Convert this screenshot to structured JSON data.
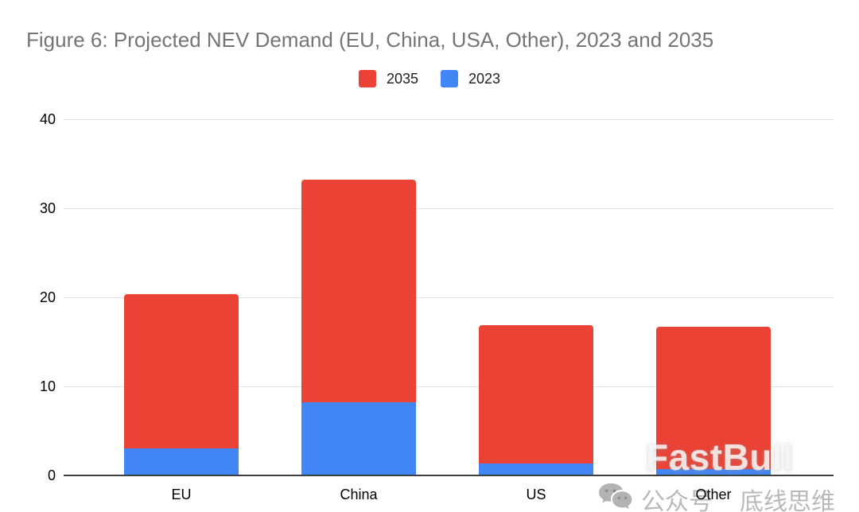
{
  "title": "Figure 6: Projected NEV Demand (EU, China, USA, Other), 2023 and 2035",
  "legend": {
    "items": [
      {
        "label": "2035",
        "color": "#EA4335"
      },
      {
        "label": "2023",
        "color": "#4285F4"
      }
    ]
  },
  "chart_data": {
    "type": "bar",
    "stacked": true,
    "title": "Figure 6: Projected NEV Demand (EU, China, USA, Other), 2023 and 2035",
    "categories": [
      "EU",
      "China",
      "US",
      "Other"
    ],
    "series": [
      {
        "name": "2023",
        "color": "#4285F4",
        "values": [
          3.0,
          8.2,
          1.3,
          0.7
        ]
      },
      {
        "name": "2035",
        "color": "#EA4335",
        "values": [
          17.4,
          25.0,
          15.6,
          16.0
        ]
      }
    ],
    "stack_totals": [
      20.4,
      33.2,
      16.9,
      16.7
    ],
    "xlabel": "",
    "ylabel": "",
    "ylim": [
      0,
      40
    ],
    "yticks": [
      0,
      10,
      20,
      30,
      40
    ],
    "grid": true,
    "legend_position": "top-center"
  },
  "watermark": {
    "brand": "FastBull",
    "wechat_icon": "wechat-icon",
    "wechat_prefix": "公众号",
    "wechat_name": "底线思维"
  },
  "colors": {
    "series_2035": "#EA4335",
    "series_2023": "#4285F4",
    "title_text": "#757575",
    "axis_text": "#000000",
    "gridline": "#e2e2e2",
    "axis_line": "#3f3f3f",
    "watermark_gray": "#b9b9b9",
    "background": "#ffffff"
  }
}
